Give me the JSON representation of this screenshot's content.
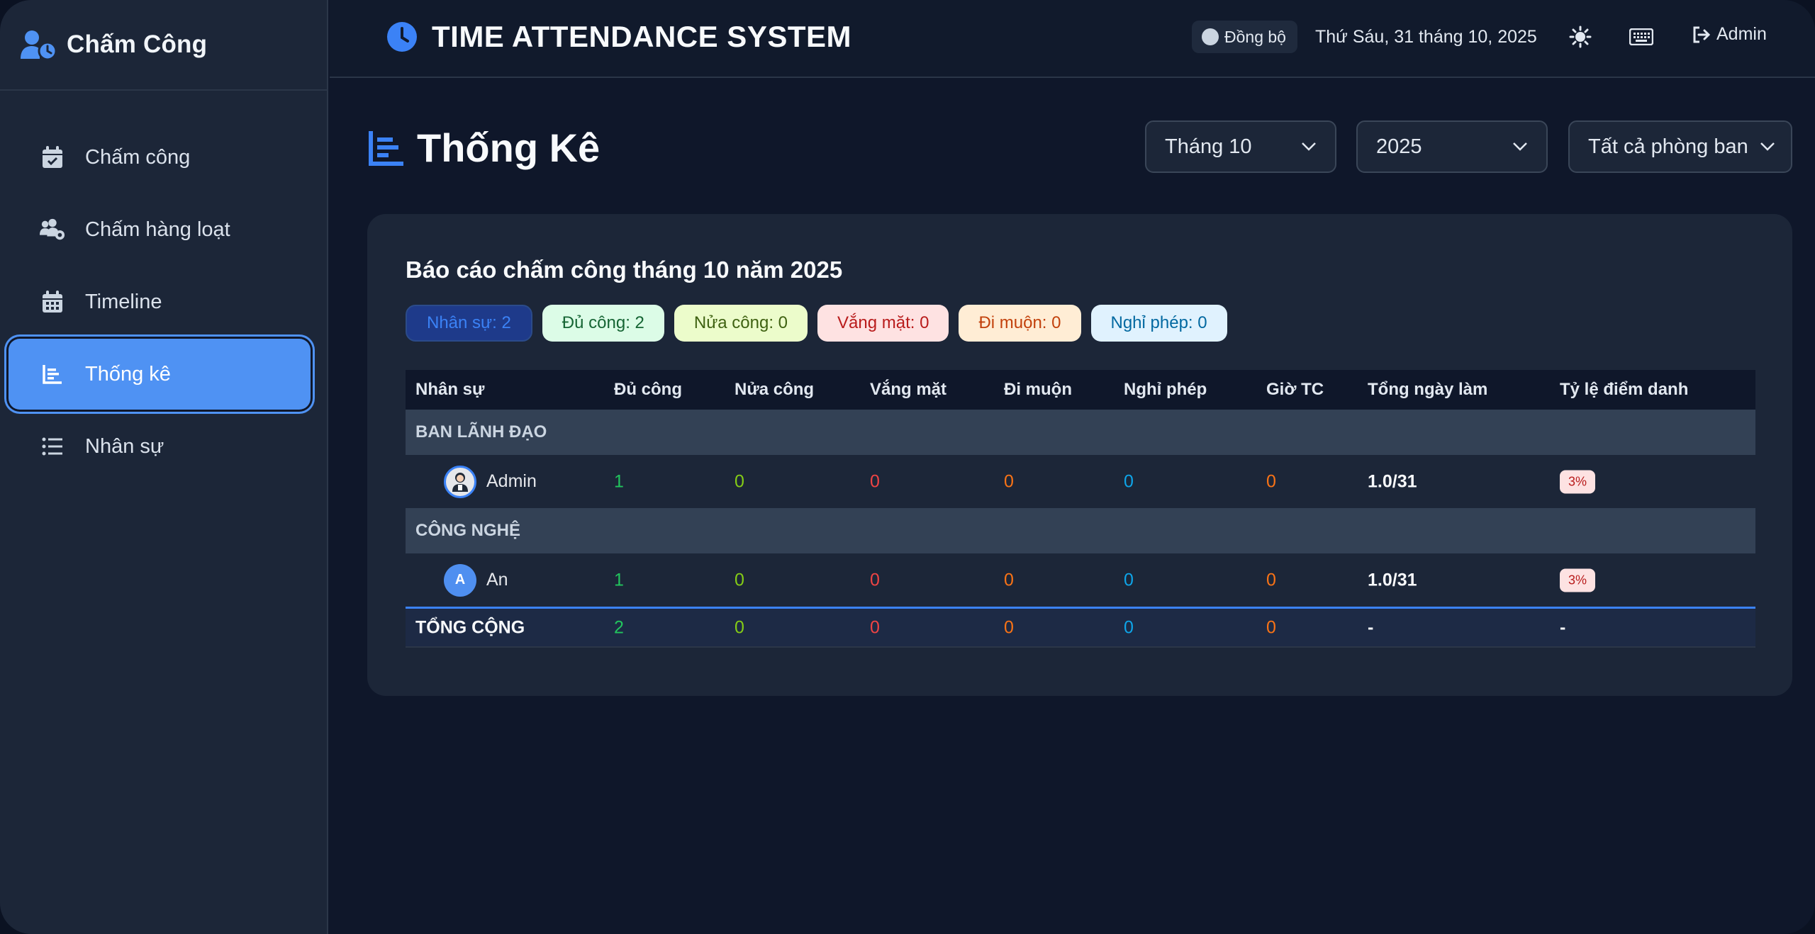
{
  "sidebar": {
    "brand": "Chấm Công",
    "items": [
      {
        "label": "Chấm công",
        "icon": "calendar-check-icon"
      },
      {
        "label": "Chấm hàng loạt",
        "icon": "users-gear-icon"
      },
      {
        "label": "Timeline",
        "icon": "calendar-icon"
      },
      {
        "label": "Thống kê",
        "icon": "chart-bar-icon",
        "active": true
      },
      {
        "label": "Nhân sự",
        "icon": "list-icon"
      }
    ]
  },
  "header": {
    "title": "TIME ATTENDANCE SYSTEM",
    "sync_label": "Đồng bộ",
    "date": "Thứ Sáu, 31 tháng 10, 2025",
    "user_label": "Admin"
  },
  "page": {
    "title": "Thống Kê",
    "filters": {
      "month": "Tháng 10",
      "year": "2025",
      "department": "Tất cả phòng ban"
    }
  },
  "report": {
    "title": "Báo cáo chấm công tháng 10 năm 2025",
    "badges": [
      {
        "label": "Nhân sự: 2",
        "bg": "#1e3a8a",
        "fg": "#3b82f6"
      },
      {
        "label": "Đủ công: 2",
        "bg": "#dcfce7",
        "fg": "#166534"
      },
      {
        "label": "Nửa công: 0",
        "bg": "#ecfccb",
        "fg": "#3f6212"
      },
      {
        "label": "Vắng mặt: 0",
        "bg": "#fee2e2",
        "fg": "#b91c1c"
      },
      {
        "label": "Đi muộn: 0",
        "bg": "#ffedd5",
        "fg": "#c2410c"
      },
      {
        "label": "Nghỉ phép: 0",
        "bg": "#e0f2fe",
        "fg": "#0369a1"
      }
    ],
    "columns": [
      "Nhân sự",
      "Đủ công",
      "Nửa công",
      "Vắng mặt",
      "Đi muộn",
      "Nghỉ phép",
      "Giờ TC",
      "Tổng ngày làm",
      "Tỷ lệ điểm danh"
    ],
    "groups": [
      {
        "name": "BAN LÃNH ĐẠO",
        "rows": [
          {
            "name": "Admin",
            "avatar": "",
            "full": "1",
            "half": "0",
            "absent": "0",
            "late": "0",
            "leave": "0",
            "ot": "0",
            "total_days": "1.0/31",
            "rate": "3%"
          }
        ]
      },
      {
        "name": "CÔNG NGHỆ",
        "rows": [
          {
            "name": "An",
            "avatar": "A",
            "full": "1",
            "half": "0",
            "absent": "0",
            "late": "0",
            "leave": "0",
            "ot": "0",
            "total_days": "1.0/31",
            "rate": "3%"
          }
        ]
      }
    ],
    "total": {
      "label": "TỔNG CỘNG",
      "full": "2",
      "half": "0",
      "absent": "0",
      "late": "0",
      "leave": "0",
      "ot": "0",
      "total_days": "-",
      "rate": "-"
    },
    "colors": {
      "full": "#22c55e",
      "half": "#84cc16",
      "absent": "#ef4444",
      "late": "#f97316",
      "leave": "#0ea5e9",
      "ot": "#f97316"
    }
  }
}
